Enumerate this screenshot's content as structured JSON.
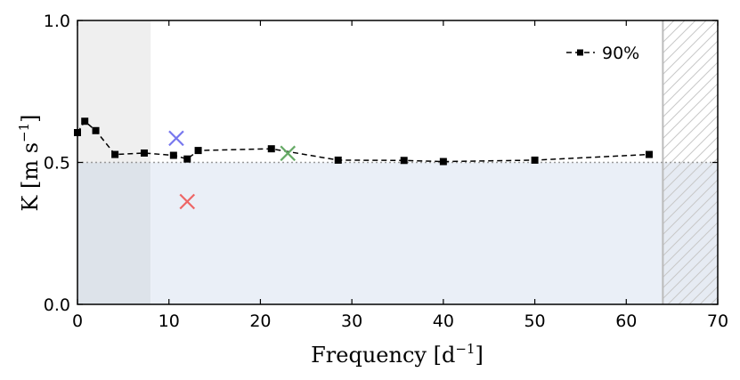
{
  "chart_data": {
    "type": "line",
    "xlabel": "Frequency [d",
    "xlabel_sup": "−1",
    "xlabel_end": "]",
    "ylabel": "K [m s",
    "ylabel_sup": "−1",
    "ylabel_end": "]",
    "xlim": [
      0,
      70
    ],
    "ylim": [
      0,
      1.0
    ],
    "x_ticks": [
      0,
      10,
      20,
      30,
      40,
      50,
      60,
      70
    ],
    "x_tick_labels": [
      "0",
      "10",
      "20",
      "30",
      "40",
      "50",
      "60",
      "70"
    ],
    "y_ticks": [
      0.0,
      0.5,
      1.0
    ],
    "y_tick_labels": [
      "0.0",
      "0.5",
      "1.0"
    ],
    "legend_position": "top-right",
    "series": [
      {
        "name": "90%",
        "style": "dashed line with square markers",
        "color": "#000000",
        "x": [
          0.0,
          0.8,
          2.0,
          4.1,
          7.3,
          10.5,
          12.0,
          13.2,
          21.2,
          28.5,
          35.7,
          40.0,
          50.0,
          62.5
        ],
        "y": [
          0.605,
          0.645,
          0.612,
          0.528,
          0.533,
          0.525,
          0.512,
          0.542,
          0.548,
          0.508,
          0.507,
          0.503,
          0.508,
          0.528
        ]
      }
    ],
    "crosses": [
      {
        "x": 10.8,
        "y": 0.585,
        "color": "#7777ee"
      },
      {
        "x": 12.0,
        "y": 0.362,
        "color": "#ee6666"
      },
      {
        "x": 23.0,
        "y": 0.532,
        "color": "#66aa66"
      }
    ],
    "reference_line": {
      "y": 0.5,
      "color": "#999999",
      "style": "dotted"
    },
    "shaded_regions": [
      {
        "x": [
          0,
          8
        ],
        "y": [
          0.5,
          1.0
        ],
        "color": "#efefef"
      },
      {
        "x": [
          0,
          8
        ],
        "y": [
          0,
          0.5
        ],
        "color": "#dde3ea"
      },
      {
        "x": [
          8,
          64
        ],
        "y": [
          0,
          0.5
        ],
        "color": "#eaeff7"
      },
      {
        "x": [
          64,
          70
        ],
        "y": [
          0,
          0.5
        ],
        "color": "#e6ebf3",
        "hatched": true
      },
      {
        "x": [
          64,
          70
        ],
        "y": [
          0.5,
          1.0
        ],
        "color": "#ffffff",
        "hatched": true
      }
    ],
    "vertical_line": {
      "x": 64,
      "color": "#bbbbbb"
    }
  }
}
